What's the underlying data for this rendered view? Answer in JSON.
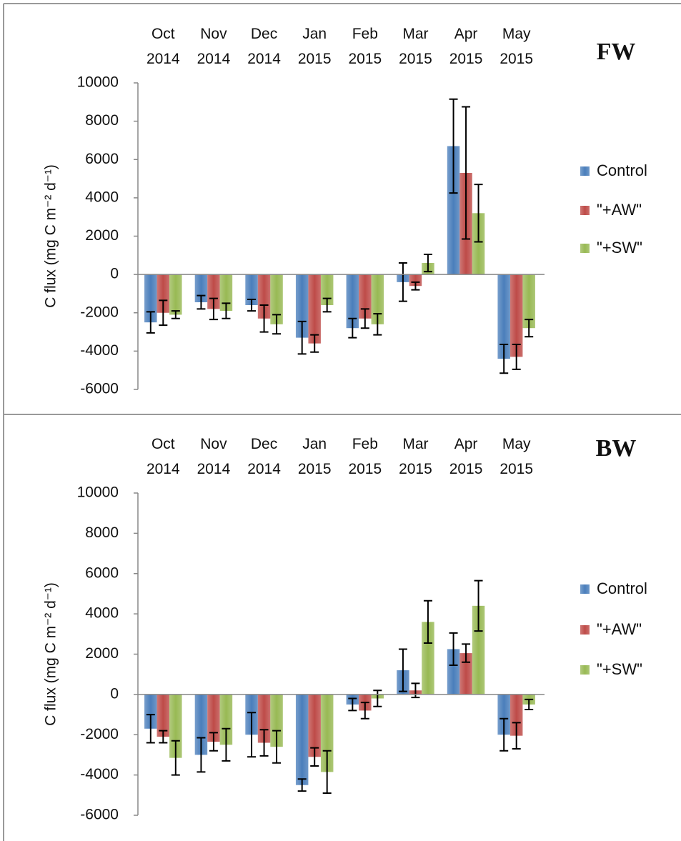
{
  "chart_data": [
    {
      "type": "bar",
      "title": "FW",
      "y_label": "C flux (mg C m⁻² d⁻¹)",
      "categories": [
        "Oct 2014",
        "Nov 2014",
        "Dec 2014",
        "Jan 2015",
        "Feb 2015",
        "Mar 2015",
        "Apr 2015",
        "May 2015"
      ],
      "series": [
        {
          "name": "Control",
          "color": "#4a7ebb",
          "values": [
            -2500,
            -1450,
            -1600,
            -3300,
            -2800,
            -400,
            6700,
            -4400
          ],
          "errors": [
            550,
            350,
            300,
            850,
            500,
            1000,
            2450,
            750
          ]
        },
        {
          "name": "\"+AW\"",
          "color": "#be4b48",
          "values": [
            -2000,
            -1800,
            -2300,
            -3600,
            -2300,
            -600,
            5300,
            -4300
          ],
          "errors": [
            650,
            550,
            700,
            450,
            500,
            200,
            3450,
            650
          ]
        },
        {
          "name": "\"+SW\"",
          "color": "#98b954",
          "values": [
            -2100,
            -1900,
            -2600,
            -1600,
            -2600,
            600,
            3200,
            -2800
          ],
          "errors": [
            200,
            400,
            500,
            350,
            550,
            450,
            1500,
            450
          ]
        }
      ],
      "ylim": [
        -6000,
        10000
      ],
      "yticks": [
        -6000,
        -4000,
        -2000,
        0,
        2000,
        4000,
        6000,
        8000,
        10000
      ],
      "legend": "right"
    },
    {
      "type": "bar",
      "title": "BW",
      "y_label": "C flux (mg C m⁻² d⁻¹)",
      "categories": [
        "Oct 2014",
        "Nov 2014",
        "Dec 2014",
        "Jan 2015",
        "Feb 2015",
        "Mar 2015",
        "Apr 2015",
        "May 2015"
      ],
      "series": [
        {
          "name": "Control",
          "color": "#4a7ebb",
          "values": [
            -1700,
            -3000,
            -2000,
            -4500,
            -500,
            1200,
            2250,
            -2000
          ],
          "errors": [
            700,
            850,
            1100,
            300,
            300,
            1050,
            800,
            800
          ]
        },
        {
          "name": "\"+AW\"",
          "color": "#be4b48",
          "values": [
            -2100,
            -2350,
            -2400,
            -3100,
            -800,
            200,
            2050,
            -2050
          ],
          "errors": [
            300,
            450,
            650,
            450,
            400,
            350,
            450,
            650
          ]
        },
        {
          "name": "\"+SW\"",
          "color": "#98b954",
          "values": [
            -3150,
            -2500,
            -2600,
            -3850,
            -200,
            3600,
            4400,
            -500
          ],
          "errors": [
            850,
            800,
            800,
            1050,
            400,
            1050,
            1250,
            250
          ]
        }
      ],
      "ylim": [
        -6000,
        10000
      ],
      "yticks": [
        -6000,
        -4000,
        -2000,
        0,
        2000,
        4000,
        6000,
        8000,
        10000
      ],
      "legend": "right"
    }
  ]
}
